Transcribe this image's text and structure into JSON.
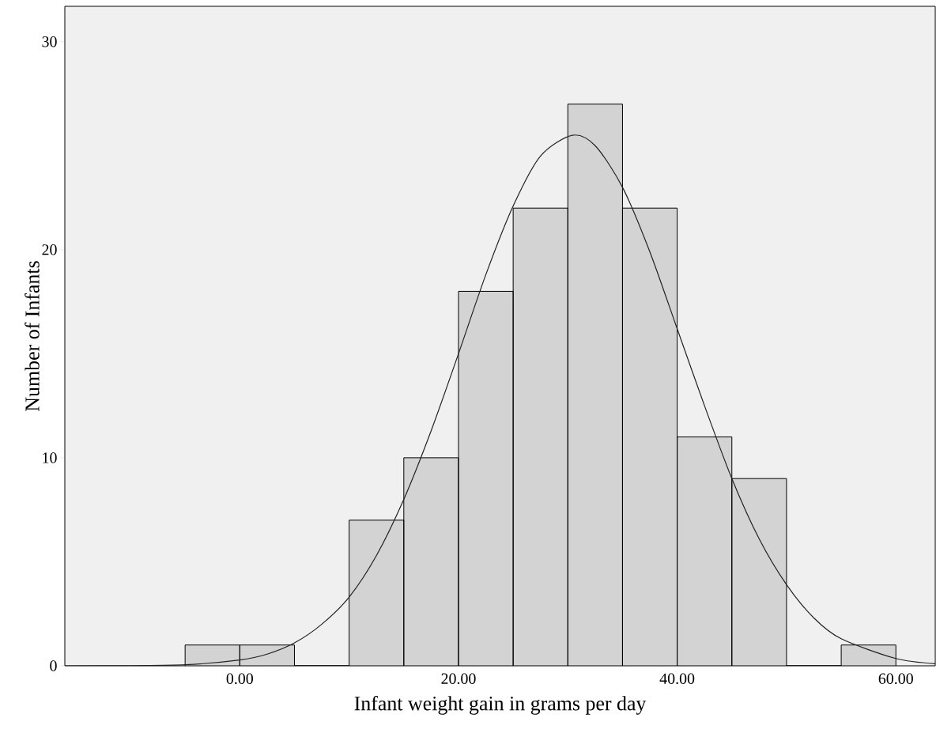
{
  "chart_data": {
    "type": "histogram",
    "xlabel": "Infant weight gain in grams per day",
    "ylabel": "Number of Infants",
    "series": [
      {
        "color": "#d3d3d3",
        "bins": [
          -5,
          0,
          5,
          10,
          15,
          20,
          25,
          30,
          35,
          40,
          45,
          50,
          55,
          60
        ],
        "values": [
          1,
          1,
          0,
          7,
          10,
          18,
          22,
          27,
          22,
          11,
          9,
          0,
          1
        ]
      },
      {
        "type": "line",
        "color": "#222222",
        "x": [
          -16,
          -10,
          -5,
          0,
          2.5,
          5,
          7.5,
          10,
          12.5,
          15,
          17.5,
          20,
          22.5,
          25,
          27.5,
          30.4,
          32.5,
          35,
          37.5,
          40,
          42.5,
          45,
          47.5,
          50,
          52.5,
          55,
          60,
          63.6
        ],
        "values": [
          0,
          0.01,
          0.05,
          0.28,
          0.56,
          1.1,
          2.0,
          3.3,
          5.3,
          8.0,
          11.3,
          15.0,
          18.8,
          22.1,
          24.5,
          25.5,
          25.0,
          23.0,
          19.9,
          16.2,
          12.5,
          9.0,
          6.1,
          3.9,
          2.3,
          1.3,
          0.35,
          0.1
        ]
      }
    ],
    "xlim": [
      -16,
      63.6
    ],
    "ylim": [
      0,
      31.7
    ],
    "xticks": [
      {
        "value": 0,
        "label": "0.00"
      },
      {
        "value": 20,
        "label": "20.00"
      },
      {
        "value": 40,
        "label": "40.00"
      },
      {
        "value": 60,
        "label": "60.00"
      }
    ],
    "yticks": [
      0,
      10,
      20,
      30
    ],
    "grid": false
  }
}
